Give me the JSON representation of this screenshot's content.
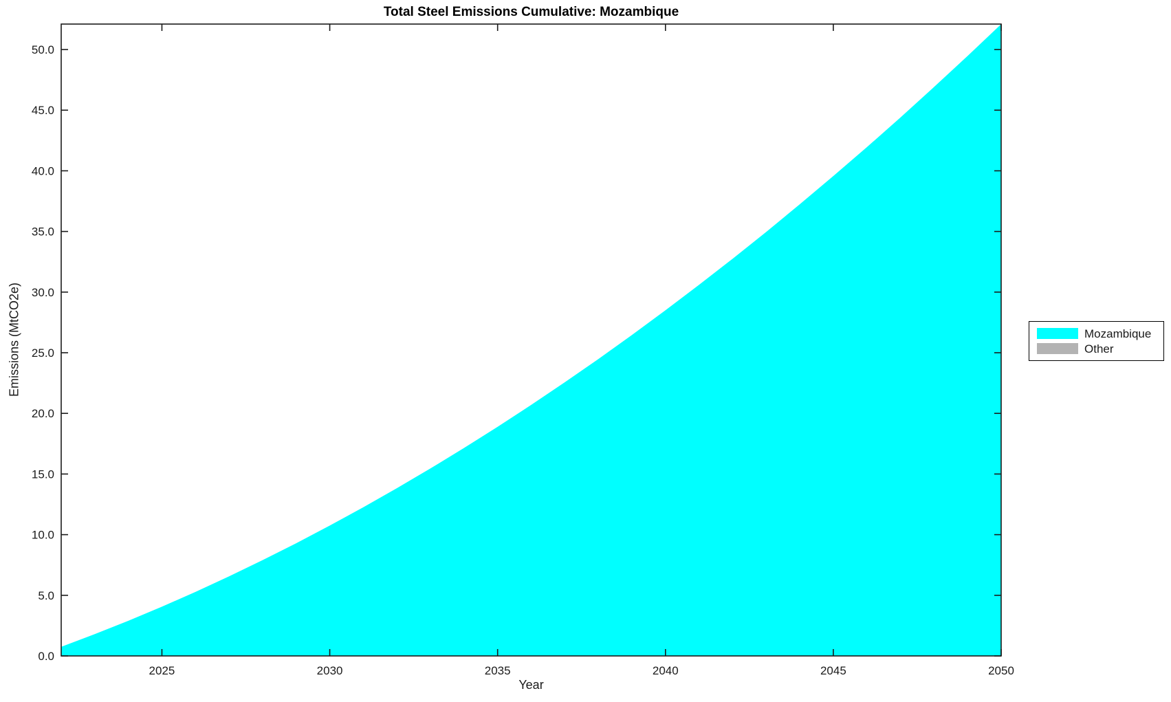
{
  "figure": {
    "background": "#ffffff"
  },
  "chart_data": {
    "type": "area",
    "title": "Total Steel Emissions Cumulative: Mozambique",
    "xlabel": "Year",
    "ylabel": "Emissions (MtCO2e)",
    "xlim": [
      2022,
      2050
    ],
    "ylim": [
      0,
      52.1
    ],
    "x_ticks": [
      "2025",
      "2030",
      "2035",
      "2040",
      "2045",
      "2050"
    ],
    "x_tick_values": [
      2025,
      2030,
      2035,
      2040,
      2045,
      2050
    ],
    "y_ticks": [
      "0.0",
      "5.0",
      "10.0",
      "15.0",
      "20.0",
      "25.0",
      "30.0",
      "35.0",
      "40.0",
      "45.0",
      "50.0"
    ],
    "y_tick_values": [
      0,
      5,
      10,
      15,
      20,
      25,
      30,
      35,
      40,
      45,
      50
    ],
    "grid": false,
    "legend_position": "outside-right",
    "series": [
      {
        "name": "Mozambique",
        "color": "#00FFFF",
        "x": [
          2022,
          2023,
          2024,
          2025,
          2026,
          2027,
          2028,
          2029,
          2030,
          2031,
          2032,
          2033,
          2034,
          2035,
          2036,
          2037,
          2038,
          2039,
          2040,
          2041,
          2042,
          2043,
          2044,
          2045,
          2046,
          2047,
          2048,
          2049,
          2050
        ],
        "values": [
          0.75,
          1.8,
          2.9,
          4.06,
          5.28,
          6.56,
          7.9,
          9.29,
          10.75,
          12.26,
          13.83,
          15.46,
          17.15,
          18.89,
          20.7,
          22.56,
          24.48,
          26.46,
          28.5,
          30.6,
          32.75,
          34.96,
          37.24,
          39.57,
          41.95,
          44.4,
          46.91,
          49.47,
          52.09
        ]
      },
      {
        "name": "Other",
        "color": "#B3B3B3"
      }
    ]
  },
  "legend": {
    "items": [
      {
        "label": "Mozambique",
        "color": "#00FFFF"
      },
      {
        "label": "Other",
        "color": "#B3B3B3"
      }
    ]
  },
  "colors": {
    "axis": "#1a1a1a",
    "area": "#00FFFF",
    "other": "#B3B3B3"
  }
}
